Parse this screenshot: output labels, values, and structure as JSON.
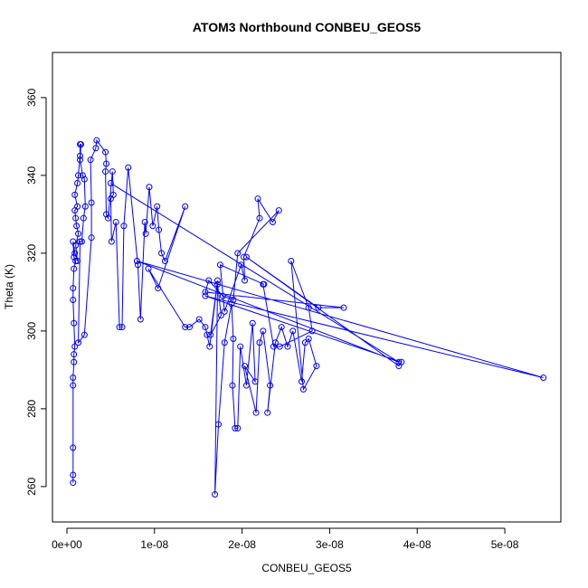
{
  "chart_data": {
    "type": "line",
    "title": "ATOM3 Northbound CONBEU_GEOS5",
    "x_label": "CONBEU_GEOS5",
    "y_label": "Theta (K)",
    "color": "#0000ff",
    "grid": false,
    "xlim": [
      -1.65e-09,
      5.64e-08
    ],
    "ylim": [
      250.9,
      371.6
    ],
    "xticks": [
      {
        "value": 0,
        "label": "0e+00"
      },
      {
        "value": 1e-08,
        "label": "1e-08"
      },
      {
        "value": 2e-08,
        "label": "2e-08"
      },
      {
        "value": 3e-08,
        "label": "3e-08"
      },
      {
        "value": 4e-08,
        "label": "4e-08"
      },
      {
        "value": 5e-08,
        "label": "5e-08"
      }
    ],
    "yticks": [
      260,
      280,
      300,
      320,
      340,
      360
    ],
    "x": [
      7e-10,
      7e-10,
      7e-10,
      7e-10,
      7e-10,
      8e-10,
      8e-10,
      9e-10,
      8e-10,
      7e-10,
      7e-10,
      8e-10,
      1e-09,
      8e-10,
      7e-10,
      9e-10,
      1.2e-09,
      1e-09,
      1.3e-09,
      1.1e-09,
      1e-09,
      9e-10,
      1.2e-09,
      9e-10,
      1.2e-09,
      1.3e-09,
      1.5e-09,
      1.5e-09,
      1.6e-09,
      1.5e-09,
      1.8e-09,
      2e-09,
      2.1e-09,
      1.9e-09,
      1.7e-09,
      1.5e-09,
      1.3e-09,
      2e-09,
      2.8e-09,
      2.8e-09,
      2.7e-09,
      3.3e-09,
      3.4e-09,
      4.4e-09,
      4.5e-09,
      4.4e-09,
      4.5e-09,
      4.7e-09,
      5.2e-09,
      5.3e-09,
      5e-09,
      5.1e-09,
      5.6e-09,
      6e-09,
      6.3e-09,
      6.5e-09,
      7e-09,
      8.1e-09,
      8.4e-09,
      8.9e-09,
      9e-09,
      9.4e-09,
      9.8e-09,
      1.03e-08,
      1.05e-08,
      1.08e-08,
      1.12e-08,
      1.35e-08,
      1.04e-08,
      9.3e-09,
      1.35e-08,
      1.4e-08,
      1.51e-08,
      1.58e-08,
      1.6e-08,
      1.63e-08,
      1.72e-08,
      1.64e-08,
      1.76e-08,
      1.72e-08,
      1.69e-08,
      1.73e-08,
      1.8e-08,
      1.88e-08,
      1.9e-08,
      1.89e-08,
      1.92e-08,
      1.95e-08,
      1.98e-08,
      2.05e-08,
      2.12e-08,
      2.15e-08,
      2.03e-08,
      2.16e-08,
      2.2e-08,
      2.24e-08,
      2.32e-08,
      2.29e-08,
      2.38e-08,
      2.45e-08,
      2.52e-08,
      2.58e-08,
      2.68e-08,
      2.72e-08,
      2.76e-08,
      2.85e-08,
      2.7e-08,
      2.56e-08,
      2.76e-08,
      2.8e-08,
      2.43e-08,
      2.36e-08,
      2.24e-08,
      2.25e-08,
      1.75e-08,
      1.8e-08,
      1.99e-08,
      2.03e-08,
      2.02e-08,
      2.2e-08,
      2.18e-08,
      2.35e-08,
      2.42e-08,
      1.95e-08,
      1.9e-08,
      1.78e-08,
      1.62e-08,
      1.58e-08,
      3.16e-08,
      2.87e-08,
      2.05e-08,
      3.79e-08,
      3.82e-08,
      1.58e-08,
      5.44e-08,
      8e-09,
      3.79e-08,
      5e-09
    ],
    "series": [
      {
        "name": "Theta",
        "color": "#0000ff",
        "values": [
          261,
          263,
          270,
          286,
          288,
          292,
          294,
          296,
          302,
          308,
          311,
          316,
          318,
          319,
          323,
          320,
          318,
          322,
          325,
          327,
          329,
          331,
          332,
          335,
          338,
          340,
          345,
          348,
          348,
          344,
          340,
          339,
          332,
          329,
          323,
          323,
          297,
          299,
          324,
          333,
          344,
          347,
          349,
          346,
          343,
          341,
          330,
          329,
          341,
          335,
          334,
          323,
          328,
          301,
          301,
          327,
          342,
          317,
          303,
          328,
          325,
          337,
          327,
          332,
          326,
          320,
          318,
          332,
          311,
          316,
          301,
          301,
          303,
          301,
          299,
          296,
          313,
          299,
          304,
          312,
          258,
          276,
          297,
          307,
          298,
          286,
          275,
          275,
          296,
          286,
          302,
          287,
          291,
          279,
          297,
          300,
          286,
          279,
          297,
          301,
          296,
          300,
          287,
          297,
          298,
          291,
          285,
          318,
          306,
          300,
          296,
          296,
          312,
          312,
          317,
          305,
          317,
          313,
          319,
          329,
          334,
          328,
          331,
          320,
          308,
          309,
          313,
          310,
          306,
          306,
          319,
          291,
          292,
          309,
          288,
          318,
          292,
          338
        ]
      }
    ]
  }
}
